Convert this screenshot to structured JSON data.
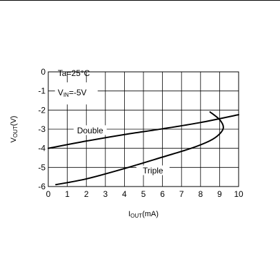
{
  "chart_data": {
    "type": "line",
    "xlabel": {
      "main": "I",
      "sub": "OUT",
      "tail": "(mA)"
    },
    "ylabel": {
      "main": "V",
      "sub": "OUT",
      "tail": "(V)"
    },
    "xlim": [
      0,
      10
    ],
    "ylim": [
      -6,
      0
    ],
    "x_ticks": [
      "0",
      "1",
      "2",
      "3",
      "4",
      "5",
      "6",
      "7",
      "8",
      "9",
      "10"
    ],
    "y_ticks": [
      "0",
      "-1",
      "-2",
      "-3",
      "-4",
      "-5",
      "-6"
    ],
    "grid": true,
    "annotation": {
      "line1": "Ta=25°C",
      "line2_main": "V",
      "line2_sub": "IN",
      "line2_tail": "=-5V"
    },
    "series": [
      {
        "name": "Double",
        "points": [
          [
            0,
            -4.0
          ],
          [
            2,
            -3.62
          ],
          [
            4,
            -3.28
          ],
          [
            6,
            -2.98
          ],
          [
            8,
            -2.65
          ],
          [
            10,
            -2.24
          ]
        ]
      },
      {
        "name": "Triple",
        "points": [
          [
            0.4,
            -5.9
          ],
          [
            2,
            -5.6
          ],
          [
            4,
            -5.06
          ],
          [
            6,
            -4.46
          ],
          [
            7.5,
            -4.0
          ],
          [
            8.5,
            -3.6
          ],
          [
            9.0,
            -3.25
          ],
          [
            9.2,
            -2.9
          ],
          [
            9.0,
            -2.5
          ],
          [
            8.5,
            -2.1
          ]
        ]
      }
    ]
  }
}
